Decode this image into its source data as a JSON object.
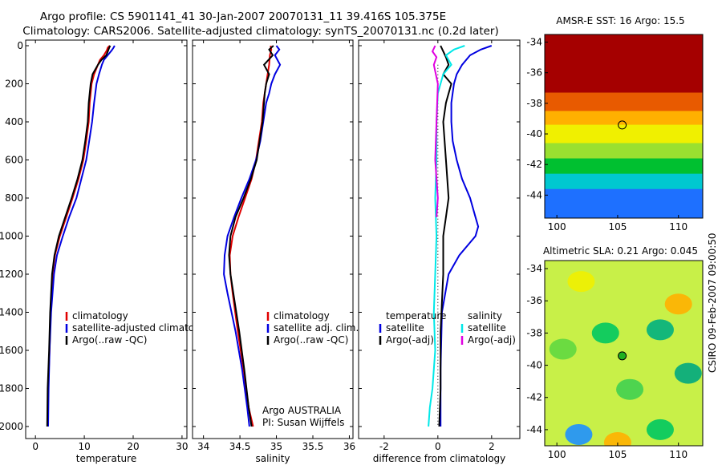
{
  "title": {
    "line1": "Argo profile: CS 5901141_41 30-Jan-2007 20070131_11 39.416S 105.375E",
    "line2": "Climatology: CARS2006. Satellite-adjusted climatology: synTS_20070131.nc (0.2d later)"
  },
  "side_label": "CSIRO 09-Feb-2007 09:00:50",
  "colors": {
    "red": "#e00000",
    "blue": "#0000e0",
    "black": "#000000",
    "cyan": "#00e8e8",
    "magenta": "#e000e0"
  },
  "chart_data": [
    {
      "type": "line",
      "id": "temperature",
      "xlabel": "temperature",
      "ylabel": "",
      "xlim": [
        -2,
        31
      ],
      "ylim": [
        2040,
        0
      ],
      "xticks": [
        0,
        10,
        20,
        30
      ],
      "xtick_labels": [
        "0",
        "10",
        "20",
        "30"
      ],
      "yticks": [
        0,
        200,
        400,
        600,
        800,
        1000,
        1200,
        1400,
        1600,
        1800,
        2000
      ],
      "ytick_labels": [
        "0",
        "200",
        "400",
        "600",
        "800",
        "1000",
        "1200",
        "1400",
        "1600",
        "1800",
        "2000"
      ],
      "legend": [
        "climatology",
        "satellite-adjusted climatology",
        "Argo(..raw -QC)"
      ],
      "legend_position": "lower-right",
      "series": [
        {
          "name": "climatology",
          "color": "red",
          "x": [
            15.2,
            14.8,
            14.6,
            14.0,
            13.2,
            12.8,
            12.0,
            11.5,
            11.1,
            10.9,
            10.4,
            9.8,
            8.8,
            7.6,
            6.3,
            5.0,
            4.0,
            3.5,
            3.1,
            2.9,
            2.6,
            2.5
          ],
          "depth": [
            0,
            10,
            25,
            50,
            75,
            100,
            150,
            200,
            300,
            400,
            500,
            600,
            700,
            800,
            900,
            1000,
            1100,
            1200,
            1400,
            1600,
            1800,
            2000
          ]
        },
        {
          "name": "satellite-adjusted climatology",
          "color": "blue",
          "x": [
            16.2,
            16.0,
            15.6,
            14.8,
            14.0,
            13.6,
            13.0,
            12.5,
            12.0,
            11.6,
            11.0,
            10.4,
            9.4,
            8.4,
            6.9,
            5.6,
            4.4,
            3.8,
            3.2,
            2.9,
            2.7,
            2.6
          ],
          "depth": [
            0,
            10,
            25,
            50,
            75,
            100,
            150,
            200,
            300,
            400,
            500,
            600,
            700,
            800,
            900,
            1000,
            1100,
            1200,
            1400,
            1600,
            1800,
            2000
          ]
        },
        {
          "name": "Argo(..raw -QC)",
          "color": "black",
          "x": [
            15.3,
            15.1,
            14.9,
            14.5,
            13.5,
            12.8,
            11.7,
            11.3,
            10.9,
            10.7,
            10.2,
            9.6,
            8.6,
            7.4,
            6.1,
            4.8,
            3.9,
            3.4,
            3.0,
            2.8,
            2.5,
            2.4
          ],
          "depth": [
            0,
            10,
            25,
            50,
            75,
            100,
            150,
            200,
            300,
            400,
            500,
            600,
            700,
            800,
            900,
            1000,
            1100,
            1200,
            1400,
            1600,
            1800,
            2000
          ]
        }
      ]
    },
    {
      "type": "line",
      "id": "salinity",
      "xlabel": "salinity",
      "ylabel": "",
      "xlim": [
        33.85,
        36.05
      ],
      "ylim": [
        2040,
        0
      ],
      "xticks": [
        34,
        34.5,
        35,
        35.5,
        36
      ],
      "xtick_labels": [
        "34",
        "34.5",
        "35",
        "35.5",
        "36"
      ],
      "yticks": [
        0,
        200,
        400,
        600,
        800,
        1000,
        1200,
        1400,
        1600,
        1800,
        2000
      ],
      "legend": [
        "climatology",
        "satellite adj. clim.",
        "Argo(..raw -QC)"
      ],
      "legend_position": "lower-right",
      "annotation": [
        "Argo AUSTRALIA",
        "PI: Susan Wijffels"
      ],
      "series": [
        {
          "name": "climatology",
          "color": "red",
          "x": [
            34.92,
            34.93,
            34.91,
            34.9,
            34.88,
            34.86,
            34.84,
            34.82,
            34.8,
            34.76,
            34.72,
            34.66,
            34.57,
            34.48,
            34.4,
            34.36,
            34.37,
            34.4,
            34.47,
            34.55,
            34.62,
            34.68
          ],
          "depth": [
            0,
            20,
            50,
            100,
            150,
            200,
            250,
            300,
            400,
            500,
            600,
            700,
            800,
            900,
            1000,
            1100,
            1200,
            1300,
            1500,
            1700,
            1900,
            2000
          ]
        },
        {
          "name": "satellite adj. clim.",
          "color": "blue",
          "x": [
            35.0,
            35.04,
            34.98,
            35.05,
            34.98,
            34.93,
            34.9,
            34.86,
            34.82,
            34.78,
            34.72,
            34.63,
            34.52,
            34.42,
            34.33,
            34.29,
            34.28,
            34.33,
            34.44,
            34.53,
            34.6,
            34.63
          ],
          "depth": [
            0,
            20,
            50,
            100,
            150,
            200,
            250,
            300,
            400,
            500,
            600,
            700,
            800,
            900,
            1000,
            1100,
            1200,
            1300,
            1500,
            1700,
            1900,
            2000
          ]
        },
        {
          "name": "Argo(..raw -QC)",
          "color": "black",
          "x": [
            34.96,
            34.9,
            34.95,
            34.83,
            34.9,
            34.86,
            34.84,
            34.83,
            34.81,
            34.77,
            34.73,
            34.65,
            34.55,
            34.44,
            34.37,
            34.35,
            34.37,
            34.41,
            34.49,
            34.56,
            34.62,
            34.66
          ],
          "depth": [
            0,
            20,
            50,
            100,
            150,
            200,
            250,
            300,
            400,
            500,
            600,
            700,
            800,
            900,
            1000,
            1100,
            1200,
            1300,
            1500,
            1700,
            1900,
            2000
          ]
        }
      ]
    },
    {
      "type": "line",
      "id": "difference",
      "xlabel": "difference from climatology",
      "ylabel": "",
      "xlim": [
        -2.95,
        3.05
      ],
      "ylim": [
        2040,
        0
      ],
      "xticks": [
        -2,
        0,
        2
      ],
      "xtick_labels": [
        "-2",
        "0",
        "2"
      ],
      "yticks": [
        0,
        200,
        400,
        600,
        800,
        1000,
        1200,
        1400,
        1600,
        1800,
        2000
      ],
      "legend_groups": [
        {
          "heading": "temperature",
          "items": [
            "satellite",
            "Argo(-adj)"
          ]
        },
        {
          "heading": "salinity",
          "items": [
            "satellite",
            "Argo(-adj)"
          ]
        }
      ],
      "legend_position": "lower-center",
      "series": [
        {
          "name": "temperature satellite",
          "color": "blue",
          "x": [
            2.0,
            1.6,
            1.2,
            0.9,
            0.7,
            0.6,
            0.5,
            0.5,
            0.55,
            0.7,
            0.9,
            1.2,
            1.4,
            1.5,
            1.4,
            1.1,
            0.8,
            0.4,
            0.15,
            0.1,
            0.1
          ],
          "depth": [
            0,
            20,
            50,
            100,
            150,
            200,
            300,
            400,
            500,
            600,
            700,
            800,
            900,
            950,
            1000,
            1050,
            1100,
            1200,
            1400,
            1700,
            2000
          ]
        },
        {
          "name": "temperature Argo(-adj)",
          "color": "black",
          "x": [
            0.1,
            0.2,
            0.3,
            0.4,
            0.2,
            0.5,
            0.3,
            0.2,
            0.3,
            0.4,
            0.3,
            0.2,
            0.2,
            0.1,
            0.1,
            0.05
          ],
          "depth": [
            0,
            30,
            60,
            100,
            150,
            200,
            300,
            400,
            600,
            800,
            900,
            1000,
            1200,
            1500,
            1800,
            2000
          ]
        },
        {
          "name": "salinity satellite",
          "color": "cyan",
          "x": [
            1.0,
            0.6,
            0.3,
            0.5,
            0.2,
            0.0,
            -0.05,
            -0.05,
            -0.1,
            -0.05,
            -0.1,
            -0.15,
            -0.1,
            -0.2,
            -0.3,
            -0.35
          ],
          "depth": [
            0,
            20,
            50,
            100,
            150,
            250,
            400,
            600,
            800,
            1000,
            1200,
            1400,
            1600,
            1800,
            1900,
            2000
          ]
        },
        {
          "name": "salinity Argo(-adj)",
          "color": "magenta",
          "x": [
            -0.1,
            -0.2,
            -0.05,
            -0.15,
            0.0,
            -0.05,
            -0.1,
            0.0,
            -0.05
          ],
          "depth": [
            0,
            30,
            60,
            100,
            200,
            400,
            600,
            800,
            900
          ]
        }
      ]
    },
    {
      "type": "heatmap",
      "id": "sst-map",
      "title": "AMSR-E SST: 16 Argo: 15.5",
      "xlim": [
        99,
        112
      ],
      "ylim": [
        -45.5,
        -33.5
      ],
      "xticks": [
        100,
        105,
        110
      ],
      "yticks": [
        -34,
        -36,
        -38,
        -40,
        -42,
        -44
      ],
      "marker": {
        "lon": 105.375,
        "lat": -39.416
      },
      "bands": [
        {
          "lat_top": -33.5,
          "lat_bottom": -37.3,
          "color": "#a50000"
        },
        {
          "lat_top": -37.3,
          "lat_bottom": -38.5,
          "color": "#e85a00"
        },
        {
          "lat_top": -38.5,
          "lat_bottom": -39.4,
          "color": "#ffb000"
        },
        {
          "lat_top": -39.4,
          "lat_bottom": -40.6,
          "color": "#f0f000"
        },
        {
          "lat_top": -40.6,
          "lat_bottom": -41.6,
          "color": "#9ae030"
        },
        {
          "lat_top": -41.6,
          "lat_bottom": -42.6,
          "color": "#00c030"
        },
        {
          "lat_top": -42.6,
          "lat_bottom": -43.6,
          "color": "#00c8d0"
        },
        {
          "lat_top": -43.6,
          "lat_bottom": -45.5,
          "color": "#1e70ff"
        }
      ]
    },
    {
      "type": "heatmap",
      "id": "sla-map",
      "title": "Altimetric SLA: 0.21 Argo: 0.045",
      "xlim": [
        99,
        112
      ],
      "ylim": [
        -45,
        -33.5
      ],
      "xticks": [
        100,
        105,
        110
      ],
      "yticks": [
        -34,
        -36,
        -38,
        -40,
        -42,
        -44
      ],
      "marker": {
        "lon": 105.375,
        "lat": -39.416
      },
      "background": "#c8f048",
      "blobs": [
        {
          "lon": 102,
          "lat": -34.8,
          "color": "#f0f000"
        },
        {
          "lon": 110,
          "lat": -36.2,
          "color": "#ffb000"
        },
        {
          "lon": 108.5,
          "lat": -37.8,
          "color": "#00b080"
        },
        {
          "lon": 104,
          "lat": -38,
          "color": "#00c860"
        },
        {
          "lon": 100.5,
          "lat": -39,
          "color": "#60d840"
        },
        {
          "lon": 106,
          "lat": -41.5,
          "color": "#40d050"
        },
        {
          "lon": 110.8,
          "lat": -40.5,
          "color": "#00a880"
        },
        {
          "lon": 101.8,
          "lat": -44.3,
          "color": "#1e90ff"
        },
        {
          "lon": 108.5,
          "lat": -44,
          "color": "#00c860"
        },
        {
          "lon": 105,
          "lat": -44.8,
          "color": "#ffb000"
        }
      ]
    }
  ]
}
